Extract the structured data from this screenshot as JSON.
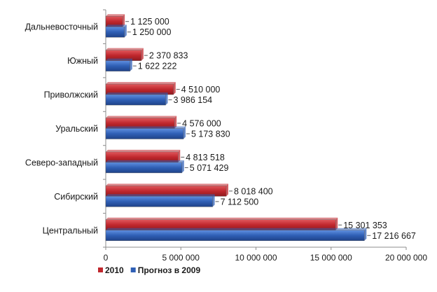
{
  "chart_data": {
    "type": "bar",
    "orientation": "horizontal",
    "categories": [
      "Дальневосточный",
      "Южный",
      "Приволжский",
      "Уральский",
      "Северо-западный",
      "Сибирский",
      "Центральный"
    ],
    "series": [
      {
        "name": "2010",
        "color": "#c0272d",
        "values": [
          1125000,
          2370833,
          4510000,
          4576000,
          4813518,
          8018400,
          15301353
        ],
        "labels": [
          "1 125 000",
          "2 370 833",
          "4 510 000",
          "4 576 000",
          "4 813 518",
          "8 018 400",
          "15 301 353"
        ]
      },
      {
        "name": "Прогноз в 2009",
        "color": "#2f5fb5",
        "values": [
          1250000,
          1622222,
          3986154,
          5173830,
          5071429,
          7112500,
          17216667
        ],
        "labels": [
          "1 250 000",
          "1 622 222",
          "3 986 154",
          "5 173 830",
          "5 071 429",
          "7 112 500",
          "17 216 667"
        ]
      }
    ],
    "xlim": [
      0,
      20000000
    ],
    "ticks": [
      0,
      5000000,
      10000000,
      15000000,
      20000000
    ],
    "tick_labels": [
      "0",
      "5 000 000",
      "10 000 000",
      "15 000 000",
      "20 000 000"
    ],
    "grid": false,
    "legend_position": "bottom-left",
    "title": "",
    "xlabel": "",
    "ylabel": ""
  }
}
